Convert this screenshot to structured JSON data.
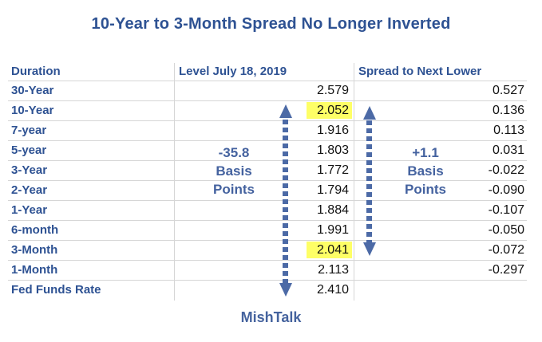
{
  "title": "10-Year to 3-Month Spread No Longer Inverted",
  "header": [
    "Duration",
    "Level July 18, 2019",
    "Spread to Next Lower"
  ],
  "rows": [
    {
      "duration": "30-Year",
      "level": "2.579",
      "spread": "0.527"
    },
    {
      "duration": "10-Year",
      "level": "2.052",
      "spread": "0.136"
    },
    {
      "duration": "7-year",
      "level": "1.916",
      "spread": "0.113"
    },
    {
      "duration": "5-year",
      "level": "1.803",
      "spread": "0.031"
    },
    {
      "duration": "3-Year",
      "level": "1.772",
      "spread": "-0.022"
    },
    {
      "duration": "2-Year",
      "level": "1.794",
      "spread": "-0.090"
    },
    {
      "duration": "1-Year",
      "level": "1.884",
      "spread": "-0.107"
    },
    {
      "duration": "6-month",
      "level": "1.991",
      "spread": "-0.050"
    },
    {
      "duration": "3-Month",
      "level": "2.041",
      "spread": "-0.072"
    },
    {
      "duration": "1-Month",
      "level": "2.113",
      "spread": "-0.297"
    },
    {
      "duration": "Fed Funds Rate",
      "level": "2.410",
      "spread": ""
    }
  ],
  "annotations": {
    "left": {
      "line1": "-35.8",
      "line2": "Basis",
      "line3": "Points"
    },
    "right": {
      "line1": "+1.1",
      "line2": "Basis",
      "line3": "Points"
    }
  },
  "footer": "MishTalk",
  "colors": {
    "heading_blue": "#2e5293",
    "annotation_blue": "#44629f",
    "arrow_blue": "#4c6aa6",
    "highlight_yellow": "#feff66",
    "gridline_gray": "#d6d6d6",
    "number_black": "#111111"
  },
  "chart_data": {
    "type": "table",
    "title": "10-Year to 3-Month Spread No Longer Inverted",
    "columns": [
      "Duration",
      "Level July 18, 2019",
      "Spread to Next Lower"
    ],
    "rows": [
      [
        "30-Year",
        2.579,
        0.527
      ],
      [
        "10-Year",
        2.052,
        0.136
      ],
      [
        "7-year",
        1.916,
        0.113
      ],
      [
        "5-year",
        1.803,
        0.031
      ],
      [
        "3-Year",
        1.772,
        -0.022
      ],
      [
        "2-Year",
        1.794,
        -0.09
      ],
      [
        "1-Year",
        1.884,
        -0.107
      ],
      [
        "6-month",
        1.991,
        -0.05
      ],
      [
        "3-Month",
        2.041,
        -0.072
      ],
      [
        "1-Month",
        2.113,
        -0.297
      ],
      [
        "Fed Funds Rate",
        2.41,
        null
      ]
    ],
    "highlighted_cells": [
      {
        "row": "10-Year",
        "column": "Level July 18, 2019",
        "value": 2.052
      },
      {
        "row": "3-Month",
        "column": "Level July 18, 2019",
        "value": 2.041
      }
    ],
    "annotations": [
      {
        "text": "-35.8 Basis Points",
        "arrow_span_rows": [
          "10-Year",
          "Fed Funds Rate"
        ],
        "column": "Level July 18, 2019"
      },
      {
        "text": "+1.1 Basis Points",
        "arrow_span_rows": [
          "10-Year",
          "3-Month"
        ],
        "column": "Spread to Next Lower"
      }
    ],
    "source_label": "MishTalk"
  }
}
